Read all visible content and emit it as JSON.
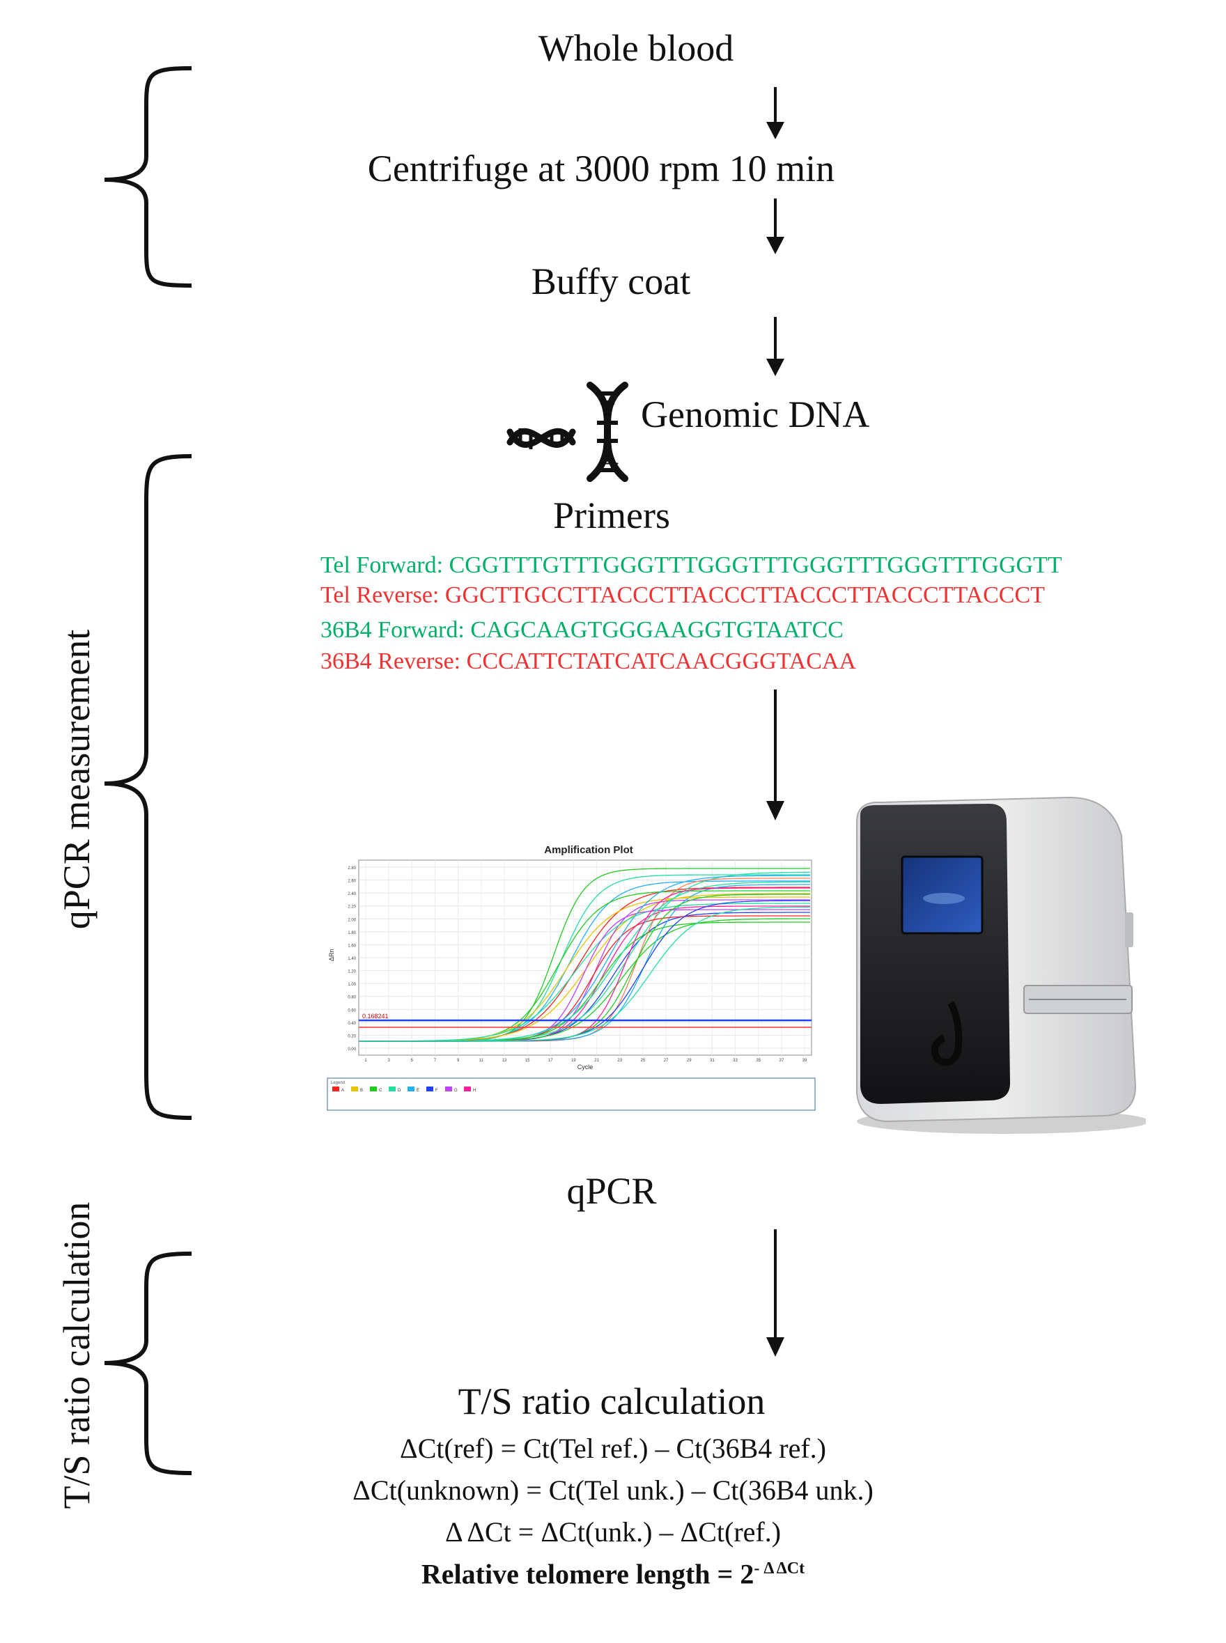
{
  "steps": {
    "whole_blood": "Whole blood",
    "centrifuge": "Centrifuge at 3000 rpm 10 min",
    "buffy_coat": "Buffy coat",
    "genomic_dna": "Genomic DNA",
    "plus": "+",
    "primers": "Primers",
    "qpcr": "qPCR",
    "ts_title": "T/S ratio calculation"
  },
  "side_labels": {
    "qpcr_measurement": "qPCR measurement",
    "ts_ratio": "T/S ratio calculation"
  },
  "primers": [
    {
      "label": "Tel Forward:",
      "sequence": "CGGTTTGTTTGGGTTTGGGTTTGGGTTTGGGTTTGGGTT",
      "color": "#00b06a"
    },
    {
      "label": "Tel Reverse:",
      "sequence": "GGCTTGCCTTACCCTTACCCTTACCCTTACCCTTACCCT",
      "color": "#f03232"
    },
    {
      "label": "36B4 Forward:",
      "sequence": "CAGCAAGTGGGAAGGTGTAATCC",
      "color": "#00b06a"
    },
    {
      "label": "36B4 Reverse:",
      "sequence": "CCCATTCTATCATCAACGGGTACAA",
      "color": "#f03232"
    }
  ],
  "formulas": {
    "ref": "ΔCt(ref) = Ct(Tel ref.) – Ct(36B4 ref.)",
    "unknown": "ΔCt(unknown) = Ct(Tel unk.) – Ct(36B4 unk.)",
    "delta_delta": "Δ ΔCt = ΔCt(unk.) – ΔCt(ref.)",
    "relative_prefix": "Relative  telomere length = 2",
    "relative_exponent": "- Δ ΔCt"
  },
  "plot": {
    "title": "Amplification Plot",
    "x_label": "Cycle",
    "y_label": "ΔRn",
    "threshold_label": "0.168241",
    "legend_label": "Legend",
    "legend_items": [
      {
        "label": "A",
        "color": "#ff2020"
      },
      {
        "label": "B",
        "color": "#e8c400"
      },
      {
        "label": "C",
        "color": "#20cc20"
      },
      {
        "label": "D",
        "color": "#20e0a0"
      },
      {
        "label": "E",
        "color": "#20b0ff"
      },
      {
        "label": "F",
        "color": "#2040ff"
      },
      {
        "label": "G",
        "color": "#c040ff"
      },
      {
        "label": "H",
        "color": "#ff20a0"
      }
    ],
    "y_ticks": [
      "2.80",
      "2.60",
      "2.40",
      "2.20",
      "2.00",
      "1.80",
      "1.60",
      "1.40",
      "1.20",
      "1.00",
      "0.80",
      "0.60",
      "0.40",
      "0.20",
      "0.00"
    ],
    "x_ticks": [
      "1",
      "3",
      "5",
      "7",
      "9",
      "11",
      "13",
      "15",
      "17",
      "19",
      "21",
      "23",
      "25",
      "27",
      "29",
      "31",
      "33",
      "35",
      "37",
      "39"
    ]
  }
}
